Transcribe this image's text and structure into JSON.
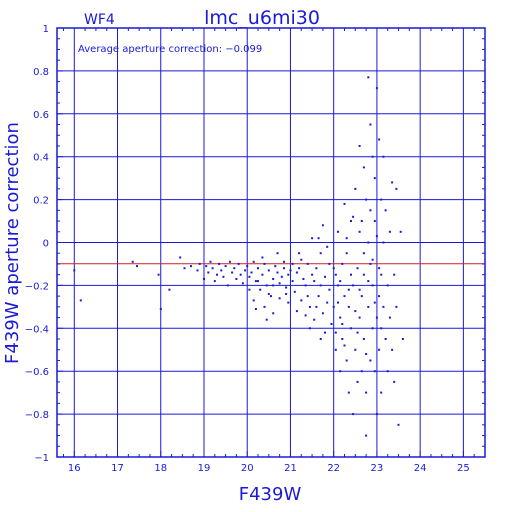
{
  "chart_data": {
    "type": "scatter",
    "title": "lmc_u6mi30",
    "panel_label": "WF4",
    "annotation": "Average aperture correction: −0.099",
    "xlabel": "F439W",
    "ylabel": "F439W aperture correction",
    "xlim": [
      15.6,
      25.5
    ],
    "ylim": [
      -1,
      1
    ],
    "x_ticks": [
      16,
      17,
      18,
      19,
      20,
      21,
      22,
      23,
      24,
      25
    ],
    "x_tick_labels": [
      "16",
      "17",
      "18",
      "19",
      "20",
      "21",
      "22",
      "23",
      "24",
      "25"
    ],
    "y_ticks": [
      -1,
      -0.8,
      -0.6,
      -0.4,
      -0.2,
      0,
      0.2,
      0.4,
      0.6,
      0.8,
      1
    ],
    "y_tick_labels": [
      "−1",
      "−0.8",
      "−0.6",
      "−0.4",
      "−0.2",
      "0",
      "0.2",
      "0.4",
      "0.6",
      "0.8",
      "1"
    ],
    "grid": true,
    "reference_line": {
      "y": -0.099,
      "color": "#cc2222"
    },
    "colors": {
      "axes": "#1a1ad8",
      "points": "#1a1ad8",
      "reference": "#cc2222"
    },
    "points": [
      [
        16.0,
        -0.13
      ],
      [
        16.15,
        -0.27
      ],
      [
        17.35,
        -0.09
      ],
      [
        17.45,
        -0.11
      ],
      [
        17.95,
        -0.15
      ],
      [
        18.0,
        -0.31
      ],
      [
        18.2,
        -0.22
      ],
      [
        18.45,
        -0.07
      ],
      [
        18.55,
        -0.12
      ],
      [
        18.7,
        -0.11
      ],
      [
        18.85,
        -0.13
      ],
      [
        18.9,
        -0.1
      ],
      [
        19.0,
        -0.17
      ],
      [
        19.05,
        -0.11
      ],
      [
        19.1,
        -0.14
      ],
      [
        19.15,
        -0.09
      ],
      [
        19.2,
        -0.12
      ],
      [
        19.25,
        -0.18
      ],
      [
        19.3,
        -0.15
      ],
      [
        19.35,
        -0.1
      ],
      [
        19.4,
        -0.13
      ],
      [
        19.45,
        -0.16
      ],
      [
        19.5,
        -0.11
      ],
      [
        19.55,
        -0.2
      ],
      [
        19.6,
        -0.09
      ],
      [
        19.65,
        -0.14
      ],
      [
        19.7,
        -0.12
      ],
      [
        19.75,
        -0.17
      ],
      [
        19.8,
        -0.1
      ],
      [
        19.85,
        -0.15
      ],
      [
        19.9,
        -0.19
      ],
      [
        19.95,
        -0.13
      ],
      [
        20.0,
        -0.11
      ],
      [
        20.05,
        -0.16
      ],
      [
        20.1,
        -0.14
      ],
      [
        20.15,
        -0.09
      ],
      [
        20.2,
        -0.18
      ],
      [
        20.25,
        -0.12
      ],
      [
        20.3,
        -0.22
      ],
      [
        20.35,
        -0.15
      ],
      [
        20.4,
        -0.1
      ],
      [
        20.45,
        -0.2
      ],
      [
        20.5,
        -0.13
      ],
      [
        20.55,
        -0.25
      ],
      [
        20.6,
        -0.17
      ],
      [
        20.65,
        -0.11
      ],
      [
        20.7,
        -0.14
      ],
      [
        20.75,
        -0.19
      ],
      [
        20.8,
        -0.16
      ],
      [
        20.85,
        -0.12
      ],
      [
        20.9,
        -0.21
      ],
      [
        20.95,
        -0.15
      ],
      [
        21.0,
        -0.13
      ],
      [
        21.05,
        -0.18
      ],
      [
        21.1,
        -0.23
      ],
      [
        21.15,
        -0.14
      ],
      [
        21.2,
        -0.12
      ],
      [
        21.25,
        -0.27
      ],
      [
        21.3,
        -0.17
      ],
      [
        21.35,
        -0.2
      ],
      [
        21.4,
        -0.1
      ],
      [
        21.45,
        -0.3
      ],
      [
        21.5,
        -0.15
      ],
      [
        20.05,
        -0.22
      ],
      [
        20.15,
        -0.27
      ],
      [
        20.25,
        -0.18
      ],
      [
        20.4,
        -0.3
      ],
      [
        20.5,
        -0.24
      ],
      [
        20.6,
        -0.2
      ],
      [
        20.75,
        -0.26
      ],
      [
        20.85,
        -0.09
      ],
      [
        20.95,
        -0.28
      ],
      [
        21.05,
        -0.1
      ],
      [
        21.15,
        -0.32
      ],
      [
        21.25,
        -0.08
      ],
      [
        21.35,
        -0.34
      ],
      [
        20.35,
        -0.07
      ],
      [
        20.45,
        -0.36
      ],
      [
        20.7,
        -0.05
      ],
      [
        20.9,
        -0.24
      ],
      [
        21.2,
        -0.05
      ],
      [
        21.4,
        -0.25
      ],
      [
        20.6,
        -0.33
      ],
      [
        20.2,
        -0.31
      ],
      [
        21.55,
        -0.18
      ],
      [
        21.6,
        -0.12
      ],
      [
        21.65,
        -0.25
      ],
      [
        21.7,
        -0.2
      ],
      [
        21.75,
        -0.33
      ],
      [
        21.8,
        -0.16
      ],
      [
        21.85,
        -0.28
      ],
      [
        21.9,
        -0.1
      ],
      [
        21.95,
        -0.38
      ],
      [
        21.6,
        -0.3
      ],
      [
        21.7,
        -0.05
      ],
      [
        21.8,
        -0.42
      ],
      [
        21.55,
        -0.36
      ],
      [
        21.65,
        0.02
      ],
      [
        21.75,
        0.08
      ],
      [
        21.85,
        -0.02
      ],
      [
        21.9,
        -0.22
      ],
      [
        21.5,
        0.02
      ],
      [
        21.45,
        -0.4
      ],
      [
        21.7,
        -0.45
      ],
      [
        22.0,
        -0.3
      ],
      [
        22.05,
        -0.15
      ],
      [
        22.05,
        -0.5
      ],
      [
        22.1,
        -0.2
      ],
      [
        22.1,
        0.05
      ],
      [
        22.15,
        -0.35
      ],
      [
        22.15,
        -0.6
      ],
      [
        22.2,
        -0.1
      ],
      [
        22.2,
        -0.45
      ],
      [
        22.25,
        0.18
      ],
      [
        22.25,
        -0.25
      ],
      [
        22.3,
        -0.55
      ],
      [
        22.3,
        -0.05
      ],
      [
        22.35,
        -0.3
      ],
      [
        22.35,
        -0.7
      ],
      [
        22.4,
        0.1
      ],
      [
        22.4,
        -0.4
      ],
      [
        22.45,
        -0.2
      ],
      [
        22.45,
        -0.8
      ],
      [
        22.5,
        0.25
      ],
      [
        22.5,
        -0.5
      ],
      [
        22.55,
        -0.12
      ],
      [
        22.55,
        -0.65
      ],
      [
        22.6,
        0.45
      ],
      [
        22.6,
        -0.35
      ],
      [
        22.6,
        0.05
      ],
      [
        22.65,
        -0.25
      ],
      [
        22.65,
        -0.6
      ],
      [
        22.7,
        0.35
      ],
      [
        22.7,
        -0.45
      ],
      [
        22.7,
        -0.15
      ],
      [
        22.75,
        0.2
      ],
      [
        22.75,
        -0.7
      ],
      [
        22.8,
        0.77
      ],
      [
        22.8,
        -0.3
      ],
      [
        22.8,
        0.0
      ],
      [
        22.85,
        0.55
      ],
      [
        22.85,
        -0.55
      ],
      [
        22.85,
        -0.1
      ],
      [
        22.9,
        0.4
      ],
      [
        22.9,
        -0.4
      ],
      [
        22.9,
        -0.2
      ],
      [
        22.95,
        0.3
      ],
      [
        22.95,
        -0.6
      ],
      [
        22.95,
        0.1
      ],
      [
        23.0,
        0.72
      ],
      [
        23.0,
        -0.35
      ],
      [
        23.0,
        -0.8
      ],
      [
        23.05,
        0.48
      ],
      [
        23.05,
        -0.25
      ],
      [
        23.05,
        -0.5
      ],
      [
        23.1,
        0.2
      ],
      [
        23.1,
        -0.15
      ],
      [
        23.1,
        -0.7
      ],
      [
        23.15,
        0.4
      ],
      [
        23.15,
        -0.3
      ],
      [
        23.15,
        0.0
      ],
      [
        23.2,
        0.15
      ],
      [
        23.2,
        -0.45
      ],
      [
        23.25,
        -0.2
      ],
      [
        23.25,
        -0.6
      ],
      [
        23.3,
        0.05
      ],
      [
        23.3,
        -0.35
      ],
      [
        23.35,
        0.28
      ],
      [
        23.35,
        -0.5
      ],
      [
        23.4,
        -0.15
      ],
      [
        23.4,
        -0.65
      ],
      [
        23.45,
        -0.3
      ],
      [
        23.45,
        0.25
      ],
      [
        23.5,
        -0.85
      ],
      [
        23.55,
        0.05
      ],
      [
        23.6,
        -0.45
      ],
      [
        22.0,
        -0.12
      ],
      [
        22.1,
        -0.28
      ],
      [
        22.2,
        -0.38
      ],
      [
        22.3,
        0.02
      ],
      [
        22.4,
        -0.15
      ],
      [
        22.5,
        -0.32
      ],
      [
        22.6,
        -0.22
      ],
      [
        22.7,
        -0.05
      ],
      [
        22.8,
        -0.18
      ],
      [
        22.9,
        -0.08
      ],
      [
        23.0,
        0.03
      ],
      [
        23.1,
        -0.4
      ],
      [
        22.35,
        -0.22
      ],
      [
        22.55,
        -0.42
      ],
      [
        22.75,
        -0.52
      ],
      [
        22.95,
        -0.28
      ],
      [
        22.25,
        -0.48
      ],
      [
        22.45,
        0.12
      ],
      [
        22.65,
        0.1
      ],
      [
        22.85,
        0.15
      ],
      [
        23.05,
        -0.12
      ],
      [
        22.15,
        -0.18
      ],
      [
        22.05,
        -0.42
      ],
      [
        22.75,
        -0.9
      ]
    ]
  }
}
